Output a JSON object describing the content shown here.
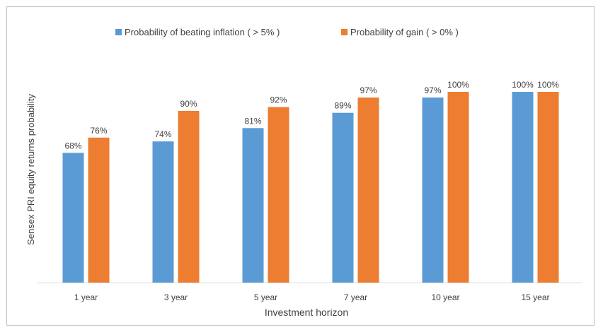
{
  "chart_data": {
    "type": "bar",
    "title": "",
    "xlabel": "Investment horizon",
    "ylabel": "Sensex PRI equity returns probability",
    "categories": [
      "1 year",
      "3 year",
      "5 year",
      "7 year",
      "10 year",
      "15 year"
    ],
    "ylim": [
      0,
      100
    ],
    "grid": false,
    "legend_position": "top",
    "series": [
      {
        "name": "Probability of beating inflation ( > 5% )",
        "color": "#5b9bd5",
        "values": [
          68,
          74,
          81,
          89,
          97,
          100
        ],
        "labels": [
          "68%",
          "74%",
          "81%",
          "89%",
          "97%",
          "100%"
        ]
      },
      {
        "name": "Probability of gain ( > 0% )",
        "color": "#ed7d31",
        "values": [
          76,
          90,
          92,
          97,
          100,
          100
        ],
        "labels": [
          "76%",
          "90%",
          "92%",
          "97%",
          "100%",
          "100%"
        ]
      }
    ]
  }
}
